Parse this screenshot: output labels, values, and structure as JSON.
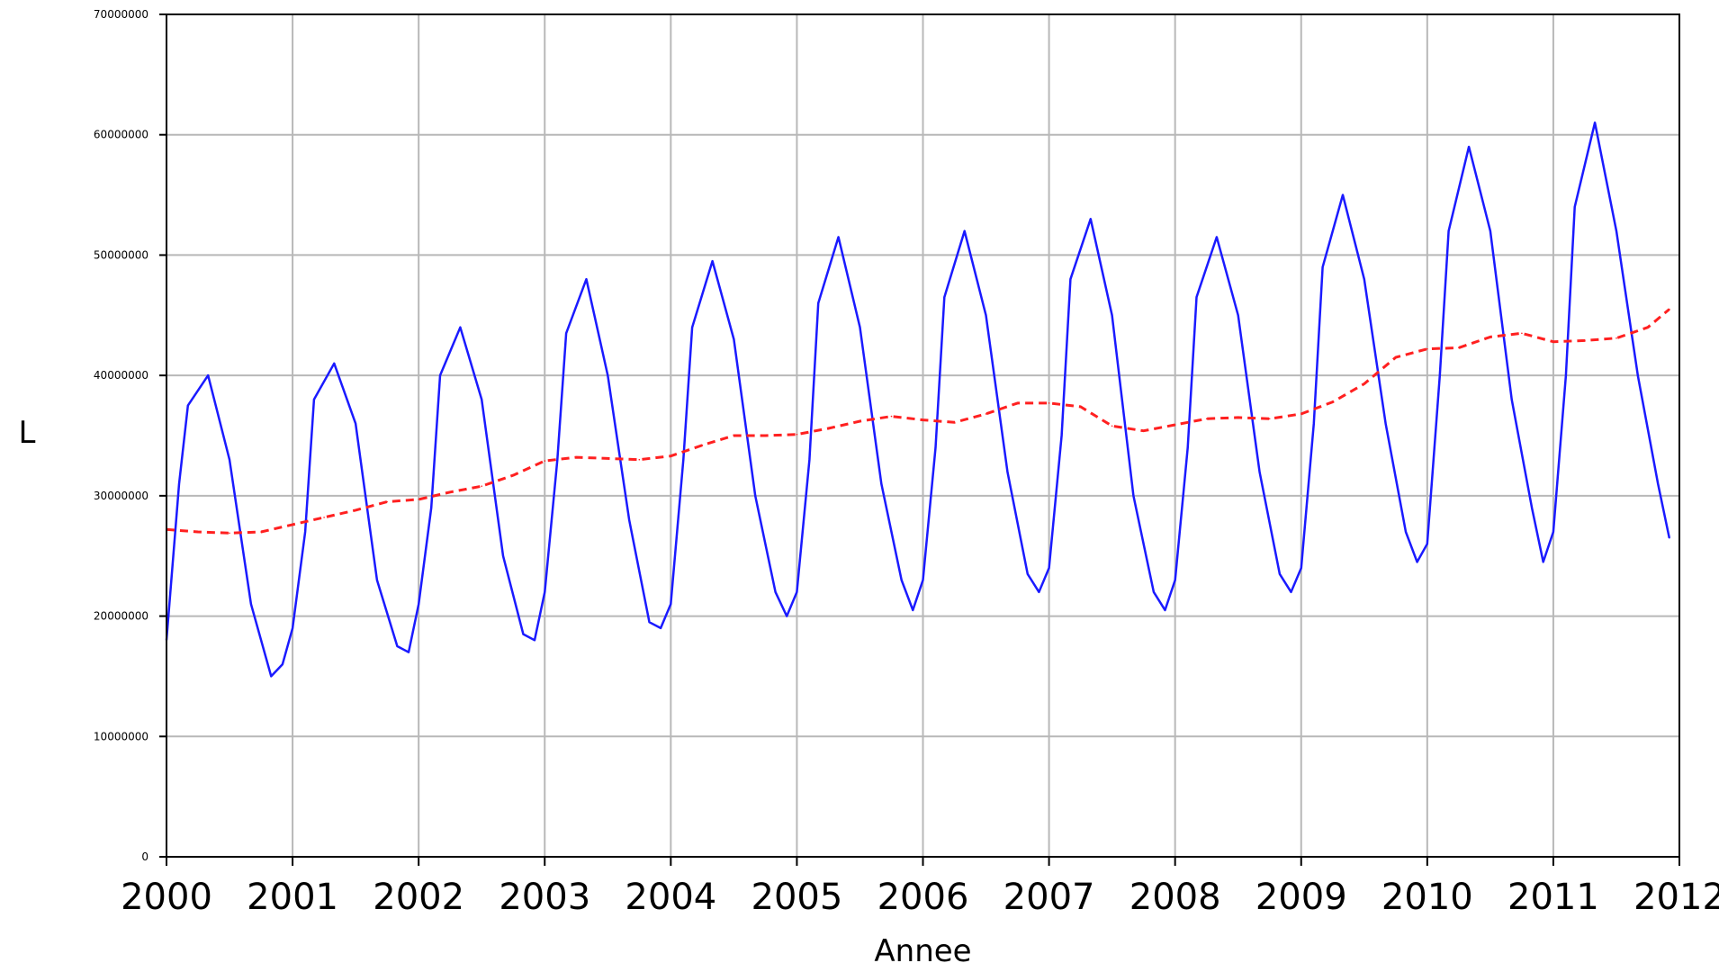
{
  "chart_data": {
    "type": "line",
    "title": "",
    "xlabel": "Annee",
    "ylabel": "L",
    "xlim": [
      2000,
      2012
    ],
    "ylim": [
      0,
      70000000
    ],
    "grid": true,
    "x_ticks": [
      "2000",
      "2001",
      "2002",
      "2003",
      "2004",
      "2005",
      "2006",
      "2007",
      "2008",
      "2009",
      "2010",
      "2011",
      "2012"
    ],
    "y_ticks": [
      "0",
      "10000000",
      "20000000",
      "30000000",
      "40000000",
      "50000000",
      "60000000",
      "70000000"
    ],
    "series": [
      {
        "color": "#1a1aff",
        "style": "solid",
        "points": [
          [
            2000.0,
            18000000
          ],
          [
            2000.1,
            31000000
          ],
          [
            2000.17,
            37500000
          ],
          [
            2000.33,
            40000000
          ],
          [
            2000.5,
            33000000
          ],
          [
            2000.67,
            21000000
          ],
          [
            2000.83,
            15000000
          ],
          [
            2000.92,
            16000000
          ],
          [
            2001.0,
            19000000
          ],
          [
            2001.1,
            27000000
          ],
          [
            2001.17,
            38000000
          ],
          [
            2001.33,
            41000000
          ],
          [
            2001.5,
            36000000
          ],
          [
            2001.67,
            23000000
          ],
          [
            2001.83,
            17500000
          ],
          [
            2001.92,
            17000000
          ],
          [
            2002.0,
            21000000
          ],
          [
            2002.1,
            29000000
          ],
          [
            2002.17,
            40000000
          ],
          [
            2002.33,
            44000000
          ],
          [
            2002.5,
            38000000
          ],
          [
            2002.67,
            25000000
          ],
          [
            2002.83,
            18500000
          ],
          [
            2002.92,
            18000000
          ],
          [
            2003.0,
            22000000
          ],
          [
            2003.1,
            33000000
          ],
          [
            2003.17,
            43500000
          ],
          [
            2003.33,
            48000000
          ],
          [
            2003.5,
            40000000
          ],
          [
            2003.67,
            28000000
          ],
          [
            2003.83,
            19500000
          ],
          [
            2003.92,
            19000000
          ],
          [
            2004.0,
            21000000
          ],
          [
            2004.1,
            33000000
          ],
          [
            2004.17,
            44000000
          ],
          [
            2004.33,
            49500000
          ],
          [
            2004.5,
            43000000
          ],
          [
            2004.67,
            30000000
          ],
          [
            2004.83,
            22000000
          ],
          [
            2004.92,
            20000000
          ],
          [
            2005.0,
            22000000
          ],
          [
            2005.1,
            33000000
          ],
          [
            2005.17,
            46000000
          ],
          [
            2005.33,
            51500000
          ],
          [
            2005.5,
            44000000
          ],
          [
            2005.67,
            31000000
          ],
          [
            2005.83,
            23000000
          ],
          [
            2005.92,
            20500000
          ],
          [
            2006.0,
            23000000
          ],
          [
            2006.1,
            34000000
          ],
          [
            2006.17,
            46500000
          ],
          [
            2006.33,
            52000000
          ],
          [
            2006.5,
            45000000
          ],
          [
            2006.67,
            32000000
          ],
          [
            2006.83,
            23500000
          ],
          [
            2006.92,
            22000000
          ],
          [
            2007.0,
            24000000
          ],
          [
            2007.1,
            35000000
          ],
          [
            2007.17,
            48000000
          ],
          [
            2007.33,
            53000000
          ],
          [
            2007.5,
            45000000
          ],
          [
            2007.67,
            30000000
          ],
          [
            2007.83,
            22000000
          ],
          [
            2007.92,
            20500000
          ],
          [
            2008.0,
            23000000
          ],
          [
            2008.1,
            34000000
          ],
          [
            2008.17,
            46500000
          ],
          [
            2008.33,
            51500000
          ],
          [
            2008.5,
            45000000
          ],
          [
            2008.67,
            32000000
          ],
          [
            2008.83,
            23500000
          ],
          [
            2008.92,
            22000000
          ],
          [
            2009.0,
            24000000
          ],
          [
            2009.1,
            36000000
          ],
          [
            2009.17,
            49000000
          ],
          [
            2009.33,
            55000000
          ],
          [
            2009.5,
            48000000
          ],
          [
            2009.67,
            36000000
          ],
          [
            2009.83,
            27000000
          ],
          [
            2009.92,
            24500000
          ],
          [
            2010.0,
            26000000
          ],
          [
            2010.1,
            40000000
          ],
          [
            2010.17,
            52000000
          ],
          [
            2010.33,
            59000000
          ],
          [
            2010.5,
            52000000
          ],
          [
            2010.67,
            38000000
          ],
          [
            2010.83,
            29000000
          ],
          [
            2010.92,
            24500000
          ],
          [
            2011.0,
            27000000
          ],
          [
            2011.1,
            40000000
          ],
          [
            2011.17,
            54000000
          ],
          [
            2011.33,
            61000000
          ],
          [
            2011.5,
            52000000
          ],
          [
            2011.67,
            40000000
          ],
          [
            2011.83,
            31000000
          ],
          [
            2011.92,
            26500000
          ]
        ]
      },
      {
        "color": "#ff2020",
        "style": "dashed",
        "points": [
          [
            2000.0,
            27200000
          ],
          [
            2000.25,
            27000000
          ],
          [
            2000.5,
            26900000
          ],
          [
            2000.75,
            27000000
          ],
          [
            2001.0,
            27600000
          ],
          [
            2001.25,
            28200000
          ],
          [
            2001.5,
            28800000
          ],
          [
            2001.75,
            29500000
          ],
          [
            2002.0,
            29700000
          ],
          [
            2002.25,
            30300000
          ],
          [
            2002.5,
            30800000
          ],
          [
            2002.75,
            31700000
          ],
          [
            2003.0,
            32900000
          ],
          [
            2003.25,
            33200000
          ],
          [
            2003.5,
            33100000
          ],
          [
            2003.75,
            33000000
          ],
          [
            2004.0,
            33300000
          ],
          [
            2004.25,
            34200000
          ],
          [
            2004.5,
            35000000
          ],
          [
            2004.75,
            35000000
          ],
          [
            2005.0,
            35100000
          ],
          [
            2005.25,
            35600000
          ],
          [
            2005.5,
            36200000
          ],
          [
            2005.75,
            36600000
          ],
          [
            2006.0,
            36300000
          ],
          [
            2006.25,
            36100000
          ],
          [
            2006.5,
            36800000
          ],
          [
            2006.75,
            37700000
          ],
          [
            2007.0,
            37700000
          ],
          [
            2007.25,
            37400000
          ],
          [
            2007.5,
            35800000
          ],
          [
            2007.75,
            35400000
          ],
          [
            2008.0,
            35900000
          ],
          [
            2008.25,
            36400000
          ],
          [
            2008.5,
            36500000
          ],
          [
            2008.75,
            36400000
          ],
          [
            2009.0,
            36800000
          ],
          [
            2009.25,
            37800000
          ],
          [
            2009.5,
            39300000
          ],
          [
            2009.75,
            41500000
          ],
          [
            2010.0,
            42200000
          ],
          [
            2010.25,
            42300000
          ],
          [
            2010.5,
            43200000
          ],
          [
            2010.75,
            43500000
          ],
          [
            2011.0,
            42800000
          ],
          [
            2011.25,
            42900000
          ],
          [
            2011.5,
            43100000
          ],
          [
            2011.75,
            44000000
          ],
          [
            2011.92,
            45500000
          ]
        ]
      }
    ]
  }
}
